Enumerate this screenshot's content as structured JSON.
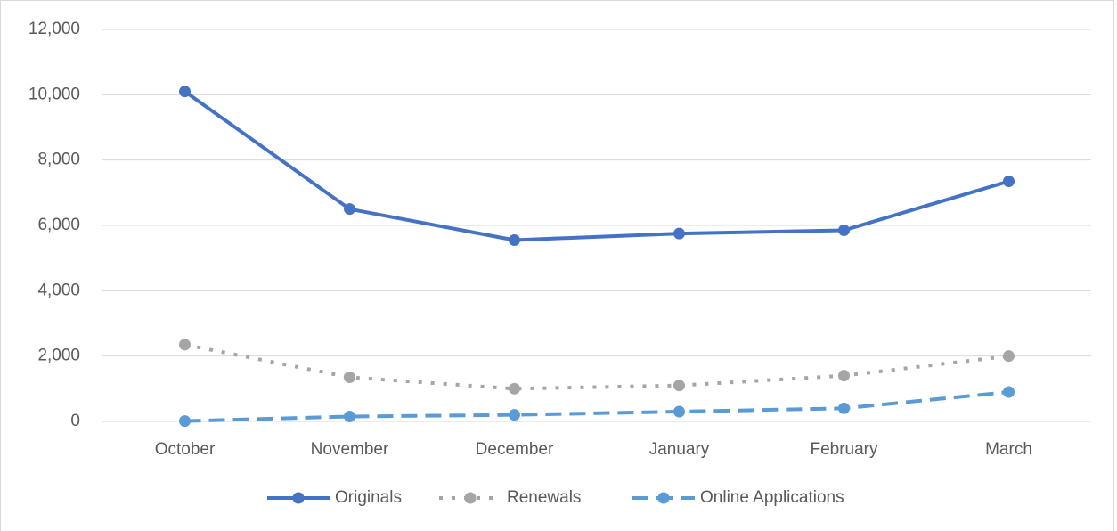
{
  "chart_data": {
    "type": "line",
    "categories": [
      "October",
      "November",
      "December",
      "January",
      "February",
      "March"
    ],
    "series": [
      {
        "name": "Originals",
        "color": "#4472c4",
        "dash": "solid",
        "values": [
          10100,
          6500,
          5550,
          5750,
          5850,
          7350
        ]
      },
      {
        "name": "Renewals",
        "color": "#a5a5a5",
        "dash": "dot",
        "values": [
          2350,
          1350,
          1000,
          1100,
          1400,
          2000
        ]
      },
      {
        "name": "Online Applications",
        "color": "#5b9bd5",
        "dash": "dash",
        "values": [
          10,
          150,
          200,
          300,
          400,
          900
        ]
      }
    ],
    "ylim": [
      0,
      12000
    ],
    "yticks": [
      0,
      {
        "value": 2000,
        "label": "2,000"
      },
      {
        "value": 4000,
        "label": "4,000"
      },
      {
        "value": 6000,
        "label": "6,000"
      },
      {
        "value": 8000,
        "label": "8,000"
      },
      {
        "value": 10000,
        "label": "10,000"
      },
      {
        "value": 12000,
        "label": "12,000"
      }
    ],
    "grid": true,
    "legend": "bottom"
  }
}
